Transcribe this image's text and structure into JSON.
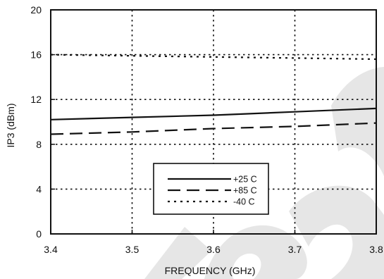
{
  "chart_data": {
    "type": "line",
    "title": "",
    "xlabel": "FREQUENCY (GHz)",
    "ylabel": "IP3 (dBm)",
    "xlim": [
      3.4,
      3.8
    ],
    "ylim": [
      0,
      20
    ],
    "x_ticks": [
      "3.4",
      "3.5",
      "3.6",
      "3.7",
      "3.8"
    ],
    "y_ticks": [
      "0",
      "4",
      "8",
      "12",
      "16",
      "20"
    ],
    "grid": true,
    "legend_position": "bottom-center",
    "series": [
      {
        "name": "+25 C",
        "line_style": "solid",
        "color": "#111111",
        "x": [
          3.4,
          3.5,
          3.6,
          3.7,
          3.8
        ],
        "y": [
          10.2,
          10.4,
          10.6,
          10.9,
          11.2
        ]
      },
      {
        "name": "+85 C",
        "line_style": "dashed",
        "color": "#111111",
        "x": [
          3.4,
          3.5,
          3.6,
          3.7,
          3.8
        ],
        "y": [
          8.9,
          9.1,
          9.4,
          9.6,
          9.9
        ]
      },
      {
        "name": "-40 C",
        "line_style": "dotted",
        "color": "#111111",
        "x": [
          3.4,
          3.5,
          3.6,
          3.7,
          3.8
        ],
        "y": [
          16.0,
          15.9,
          15.8,
          15.7,
          15.6
        ]
      }
    ]
  },
  "colors": {
    "watermark": "#e6e6e6",
    "ink": "#111111"
  }
}
